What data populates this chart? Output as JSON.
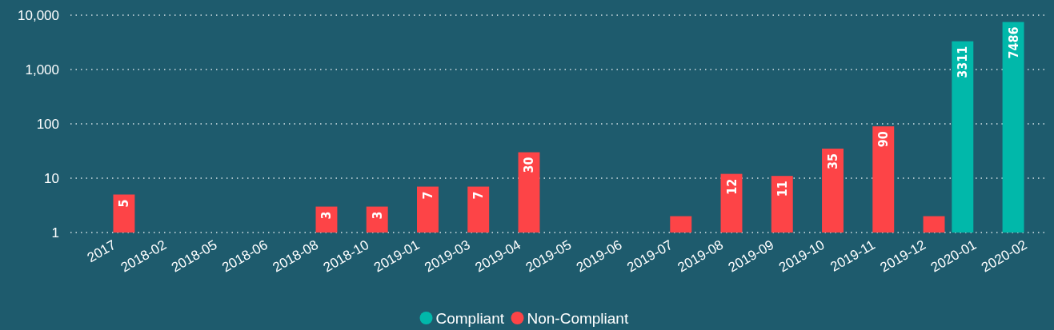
{
  "chart_data": {
    "type": "bar",
    "log": true,
    "ylim": [
      1,
      10000
    ],
    "yticks": [
      1,
      10,
      100,
      {
        "value": 1000,
        "label": "1,000"
      },
      {
        "value": 10000,
        "label": "10,000"
      }
    ],
    "grid": "y",
    "legend": "bottom",
    "categories": [
      "2017",
      "2018-02",
      "2018-05",
      "2018-06",
      "2018-08",
      "2018-10",
      "2019-01",
      "2019-03",
      "2019-04",
      "2019-05",
      "2019-06",
      "2019-07",
      "2019-08",
      "2019-09",
      "2019-10",
      "2019-11",
      "2019-12",
      "2020-01",
      "2020-02"
    ],
    "series": [
      {
        "name": "Compliant",
        "color": "#01b8aa",
        "values": [
          null,
          null,
          null,
          null,
          null,
          null,
          null,
          null,
          null,
          null,
          null,
          null,
          null,
          null,
          null,
          null,
          null,
          3311,
          7486
        ],
        "value_labels": [
          null,
          null,
          null,
          null,
          null,
          null,
          null,
          null,
          null,
          null,
          null,
          null,
          null,
          null,
          null,
          null,
          null,
          "3311",
          "7486"
        ]
      },
      {
        "name": "Non-Compliant",
        "color": "#fd4447",
        "values": [
          5,
          null,
          null,
          null,
          3,
          3,
          7,
          7,
          30,
          null,
          null,
          2,
          12,
          11,
          35,
          90,
          2,
          null,
          null
        ],
        "value_labels": [
          "5",
          null,
          null,
          null,
          "3",
          "3",
          "7",
          "7",
          "30",
          null,
          null,
          null,
          "12",
          "11",
          "35",
          "90",
          null,
          null,
          null
        ]
      }
    ]
  }
}
